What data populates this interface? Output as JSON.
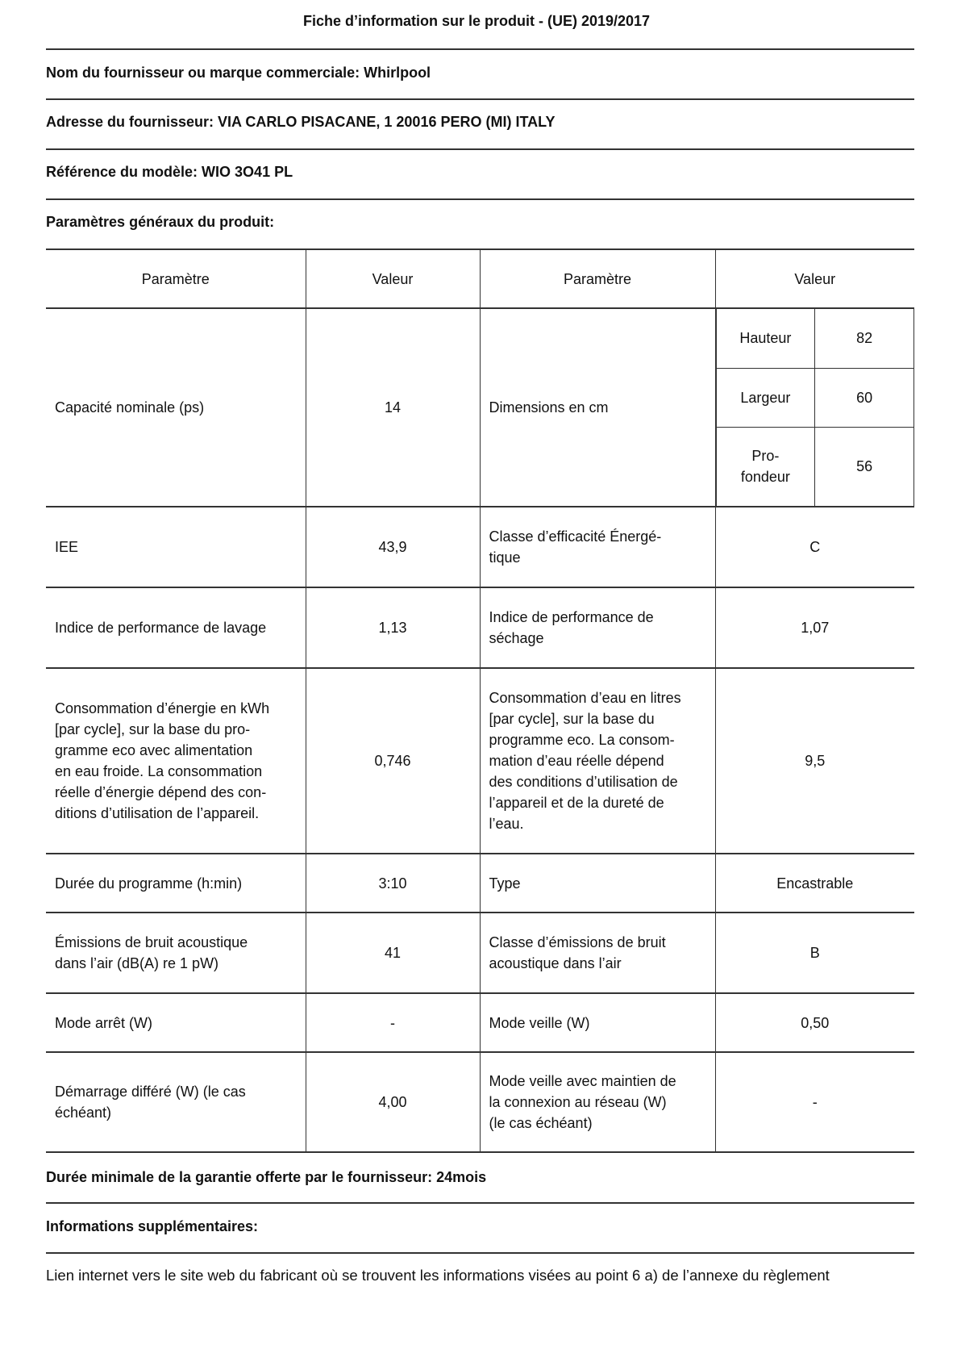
{
  "title": "Fiche d’information sur le produit - (UE) 2019/2017",
  "supplier_name": "Nom du fournisseur ou marque commerciale: Whirlpool",
  "supplier_address": "Adresse du fournisseur: VIA CARLO PISACANE, 1 20016 PERO (MI) ITALY",
  "model_reference": "Référence du modèle: WIO 3O41 PL",
  "general_params_heading": "Paramètres généraux du produit:",
  "table": {
    "headers": [
      "Paramètre",
      "Valeur",
      "Paramètre",
      "Valeur"
    ],
    "capacity": {
      "label": "Capacité nominale (ps)",
      "value": "14"
    },
    "dimensions": {
      "label": "Dimensions en cm",
      "rows": [
        {
          "label": "Hauteur",
          "value": "82"
        },
        {
          "label": "Largeur",
          "value": "60"
        },
        {
          "label": "Pro-\nfondeur",
          "value": "56"
        }
      ]
    },
    "rows": [
      {
        "p1": "IEE",
        "v1": "43,9",
        "p2": "Classe d’efficacité Énergé-\ntique",
        "v2": "C"
      },
      {
        "p1": "Indice de performance de lavage",
        "v1": "1,13",
        "p2": "Indice de performance de\nséchage",
        "v2": "1,07"
      },
      {
        "p1": "Consommation d’énergie en kWh\n[par cycle], sur la base du pro-\ngramme eco avec alimentation\nen eau froide. La consommation\nréelle d’énergie dépend des con-\nditions d’utilisation de l’appareil.",
        "v1": "0,746",
        "p2": "Consommation d’eau en litres\n[par cycle], sur la base du\nprogramme eco. La consom-\nmation d’eau réelle dépend\ndes conditions d’utilisation de\nl’appareil et de la dureté de\nl’eau.",
        "v2": "9,5"
      },
      {
        "p1": "Durée du programme (h:min)",
        "v1": "3:10",
        "p2": "Type",
        "v2": "Encastrable"
      },
      {
        "p1": "Émissions de bruit acoustique\ndans l’air (dB(A) re 1 pW)",
        "v1": "41",
        "p2": "Classe d’émissions de bruit\nacoustique dans l’air",
        "v2": "B"
      },
      {
        "p1": "Mode arrêt (W)",
        "v1": "-",
        "p2": "Mode veille (W)",
        "v2": "0,50"
      },
      {
        "p1": "Démarrage différé (W) (le cas\néchéant)",
        "v1": "4,00",
        "p2": "Mode veille avec maintien de\nla connexion au réseau (W)\n(le cas échéant)",
        "v2": "-"
      }
    ]
  },
  "warranty": "Durée minimale de la garantie offerte par le fournisseur: 24mois",
  "additional_info_heading": "Informations supplémentaires:",
  "link_text": "Lien internet vers le site web du fabricant où se trouvent les informations visées au point 6 a) de l’annexe du règlement"
}
